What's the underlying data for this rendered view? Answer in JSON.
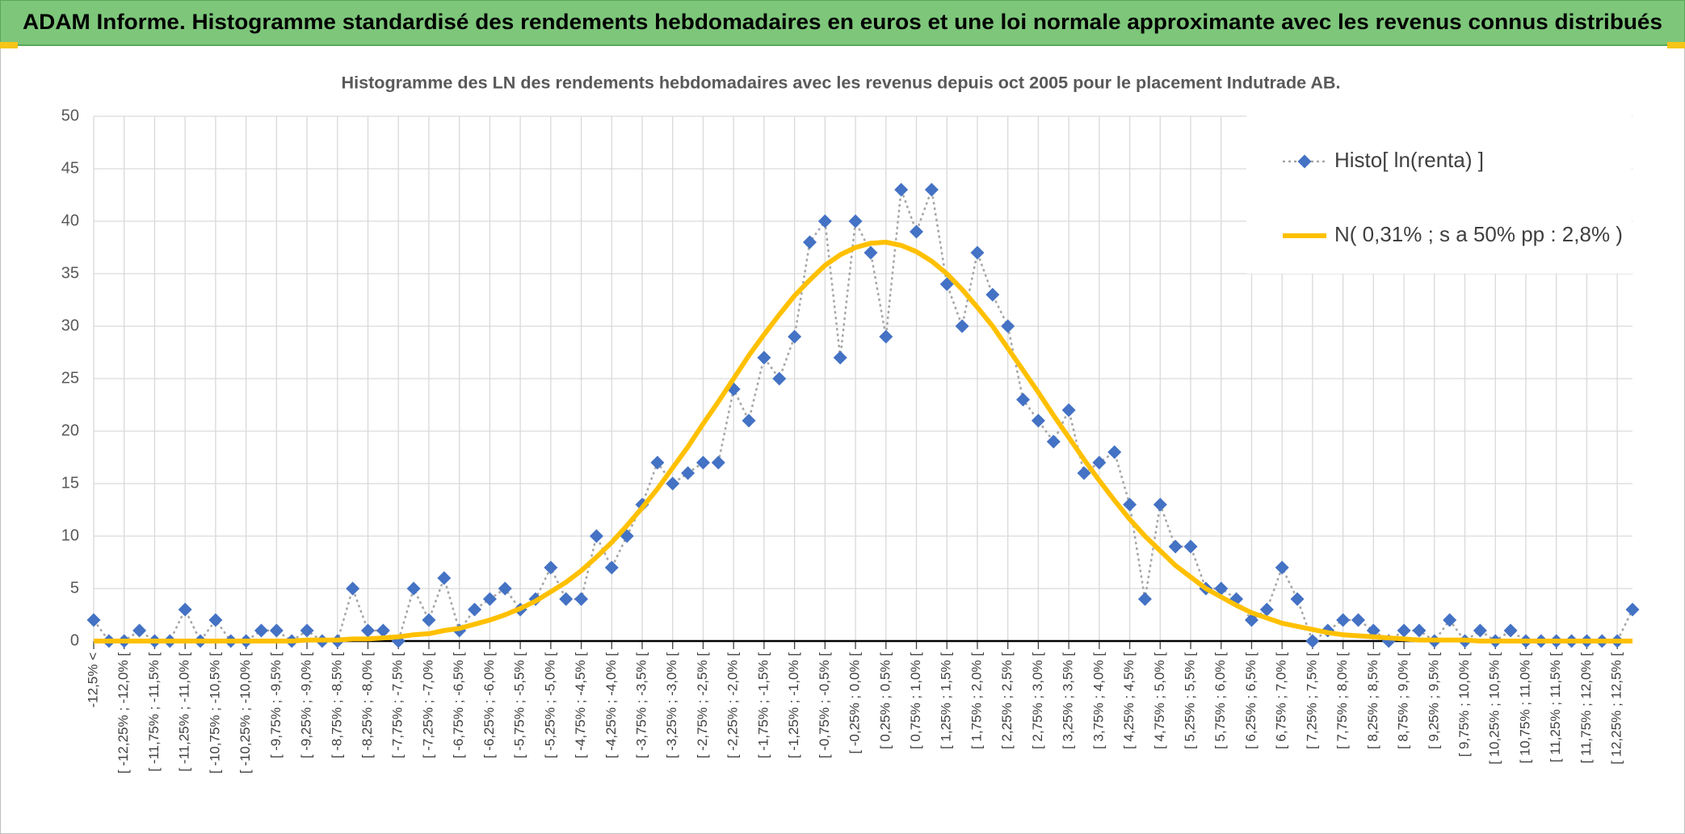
{
  "header": {
    "title": "ADAM Informe. Histogramme standardisé des rendements hebdomadaires en euros et une loi normale approximante avec les revenus connus distribués"
  },
  "chart_data": {
    "type": "line",
    "title": "Histogramme des LN des rendements hebdomadaires avec les revenus depuis oct 2005 pour le placement Indutrade AB.",
    "categories": [
      "-12,5% <",
      null,
      "[ -12,25% ; -12,0% [",
      null,
      "[ -11,75% ; -11,5% [",
      null,
      "[ -11,25% ; -11,0% [",
      null,
      "[ -10,75% ; -10,5% [",
      null,
      "[ -10,25% ; -10,0% [",
      null,
      "[ -9,75% ; -9,5% [",
      null,
      "[ -9,25% ; -9,0% [",
      null,
      "[ -8,75% ; -8,5% [",
      null,
      "[ -8,25% ; -8,0% [",
      null,
      "[ -7,75% ; -7,5% [",
      null,
      "[ -7,25% ; -7,0% [",
      null,
      "[ -6,75% ; -6,5% [",
      null,
      "[ -6,25% ; -6,0% [",
      null,
      "[ -5,75% ; -5,5% [",
      null,
      "[ -5,25% ; -5,0% [",
      null,
      "[ -4,75% ; -4,5% [",
      null,
      "[ -4,25% ; -4,0% [",
      null,
      "[ -3,75% ; -3,5% [",
      null,
      "[ -3,25% ; -3,0% [",
      null,
      "[ -2,75% ; -2,5% [",
      null,
      "[ -2,25% ; -2,0% [",
      null,
      "[ -1,75% ; -1,5% [",
      null,
      "[ -1,25% ; -1,0% [",
      null,
      "[ -0,75% ; -0,5% [",
      null,
      "[ -0,25% ; 0,0% [",
      null,
      "[ 0,25% ; 0,5% [",
      null,
      "[ 0,75% ; 1,0% [",
      null,
      "[ 1,25% ; 1,5% [",
      null,
      "[ 1,75% ; 2,0% [",
      null,
      "[ 2,25% ; 2,5% [",
      null,
      "[ 2,75% ; 3,0% [",
      null,
      "[ 3,25% ; 3,5% [",
      null,
      "[ 3,75% ; 4,0% [",
      null,
      "[ 4,25% ; 4,5% [",
      null,
      "[ 4,75% ; 5,0% [",
      null,
      "[ 5,25% ; 5,5% [",
      null,
      "[ 5,75% ; 6,0% [",
      null,
      "[ 6,25% ; 6,5% [",
      null,
      "[ 6,75% ; 7,0% [",
      null,
      "[ 7,25% ; 7,5% [",
      null,
      "[ 7,75% ; 8,0% [",
      null,
      "[ 8,25% ; 8,5% [",
      null,
      "[ 8,75% ; 9,0% [",
      null,
      "[ 9,25% ; 9,5% [",
      null,
      "[ 9,75% ; 10,0% [",
      null,
      "[ 10,25% ; 10,5% [",
      null,
      "[ 10,75% ; 11,0% [",
      null,
      "[ 11,25% ; 11,5% [",
      null,
      "[ 11,75% ; 12,0% [",
      null,
      "[ 12,25% ; 12,5% [",
      null
    ],
    "series": [
      {
        "name": "Histo[ ln(renta) ]",
        "color": "#4472c4",
        "line_color": "#a5a5a5",
        "dash": "dotted",
        "marker": "diamond",
        "values": [
          2,
          0,
          0,
          1,
          0,
          0,
          3,
          0,
          2,
          0,
          0,
          1,
          1,
          0,
          1,
          0,
          0,
          5,
          1,
          1,
          0,
          5,
          2,
          6,
          1,
          3,
          4,
          5,
          3,
          4,
          7,
          4,
          4,
          10,
          7,
          10,
          13,
          17,
          15,
          16,
          17,
          17,
          24,
          21,
          27,
          25,
          29,
          38,
          40,
          27,
          40,
          37,
          29,
          43,
          39,
          43,
          34,
          30,
          37,
          33,
          30,
          23,
          21,
          19,
          22,
          16,
          17,
          18,
          13,
          4,
          13,
          9,
          9,
          5,
          5,
          4,
          2,
          3,
          7,
          4,
          0,
          1,
          2,
          2,
          1,
          0,
          1,
          1,
          0,
          2,
          0,
          1,
          0,
          1,
          0,
          0,
          0,
          0,
          0,
          0,
          0,
          3
        ]
      },
      {
        "name": "N( 0,31% ; s a 50% pp : 2,8% )",
        "color": "#ffc000",
        "dash": "solid",
        "marker": "none",
        "values": [
          0,
          0,
          0,
          0,
          0,
          0,
          0,
          0,
          0,
          0,
          0,
          0,
          0,
          0,
          0.1,
          0.1,
          0.1,
          0.2,
          0.2,
          0.3,
          0.4,
          0.6,
          0.7,
          1.0,
          1.2,
          1.6,
          2.0,
          2.5,
          3.1,
          3.8,
          4.7,
          5.6,
          6.7,
          8.0,
          9.4,
          11.0,
          12.7,
          14.5,
          16.5,
          18.5,
          20.7,
          22.8,
          25.0,
          27.2,
          29.2,
          31.1,
          32.9,
          34.4,
          35.8,
          36.8,
          37.5,
          37.9,
          38.0,
          37.7,
          37.1,
          36.2,
          35.0,
          33.5,
          31.8,
          30.0,
          27.9,
          25.8,
          23.7,
          21.5,
          19.4,
          17.3,
          15.3,
          13.4,
          11.6,
          10.0,
          8.6,
          7.2,
          6.1,
          5.0,
          4.2,
          3.4,
          2.7,
          2.2,
          1.7,
          1.4,
          1.1,
          0.8,
          0.6,
          0.5,
          0.4,
          0.3,
          0.2,
          0.1,
          0.1,
          0.1,
          0.1,
          0,
          0,
          0,
          0,
          0,
          0,
          0,
          0,
          0,
          0,
          0
        ]
      }
    ],
    "ylim": [
      0,
      50
    ],
    "yticks": [
      0,
      5,
      10,
      15,
      20,
      25,
      30,
      35,
      40,
      45,
      50
    ],
    "grid": true,
    "legend": "top-right"
  }
}
